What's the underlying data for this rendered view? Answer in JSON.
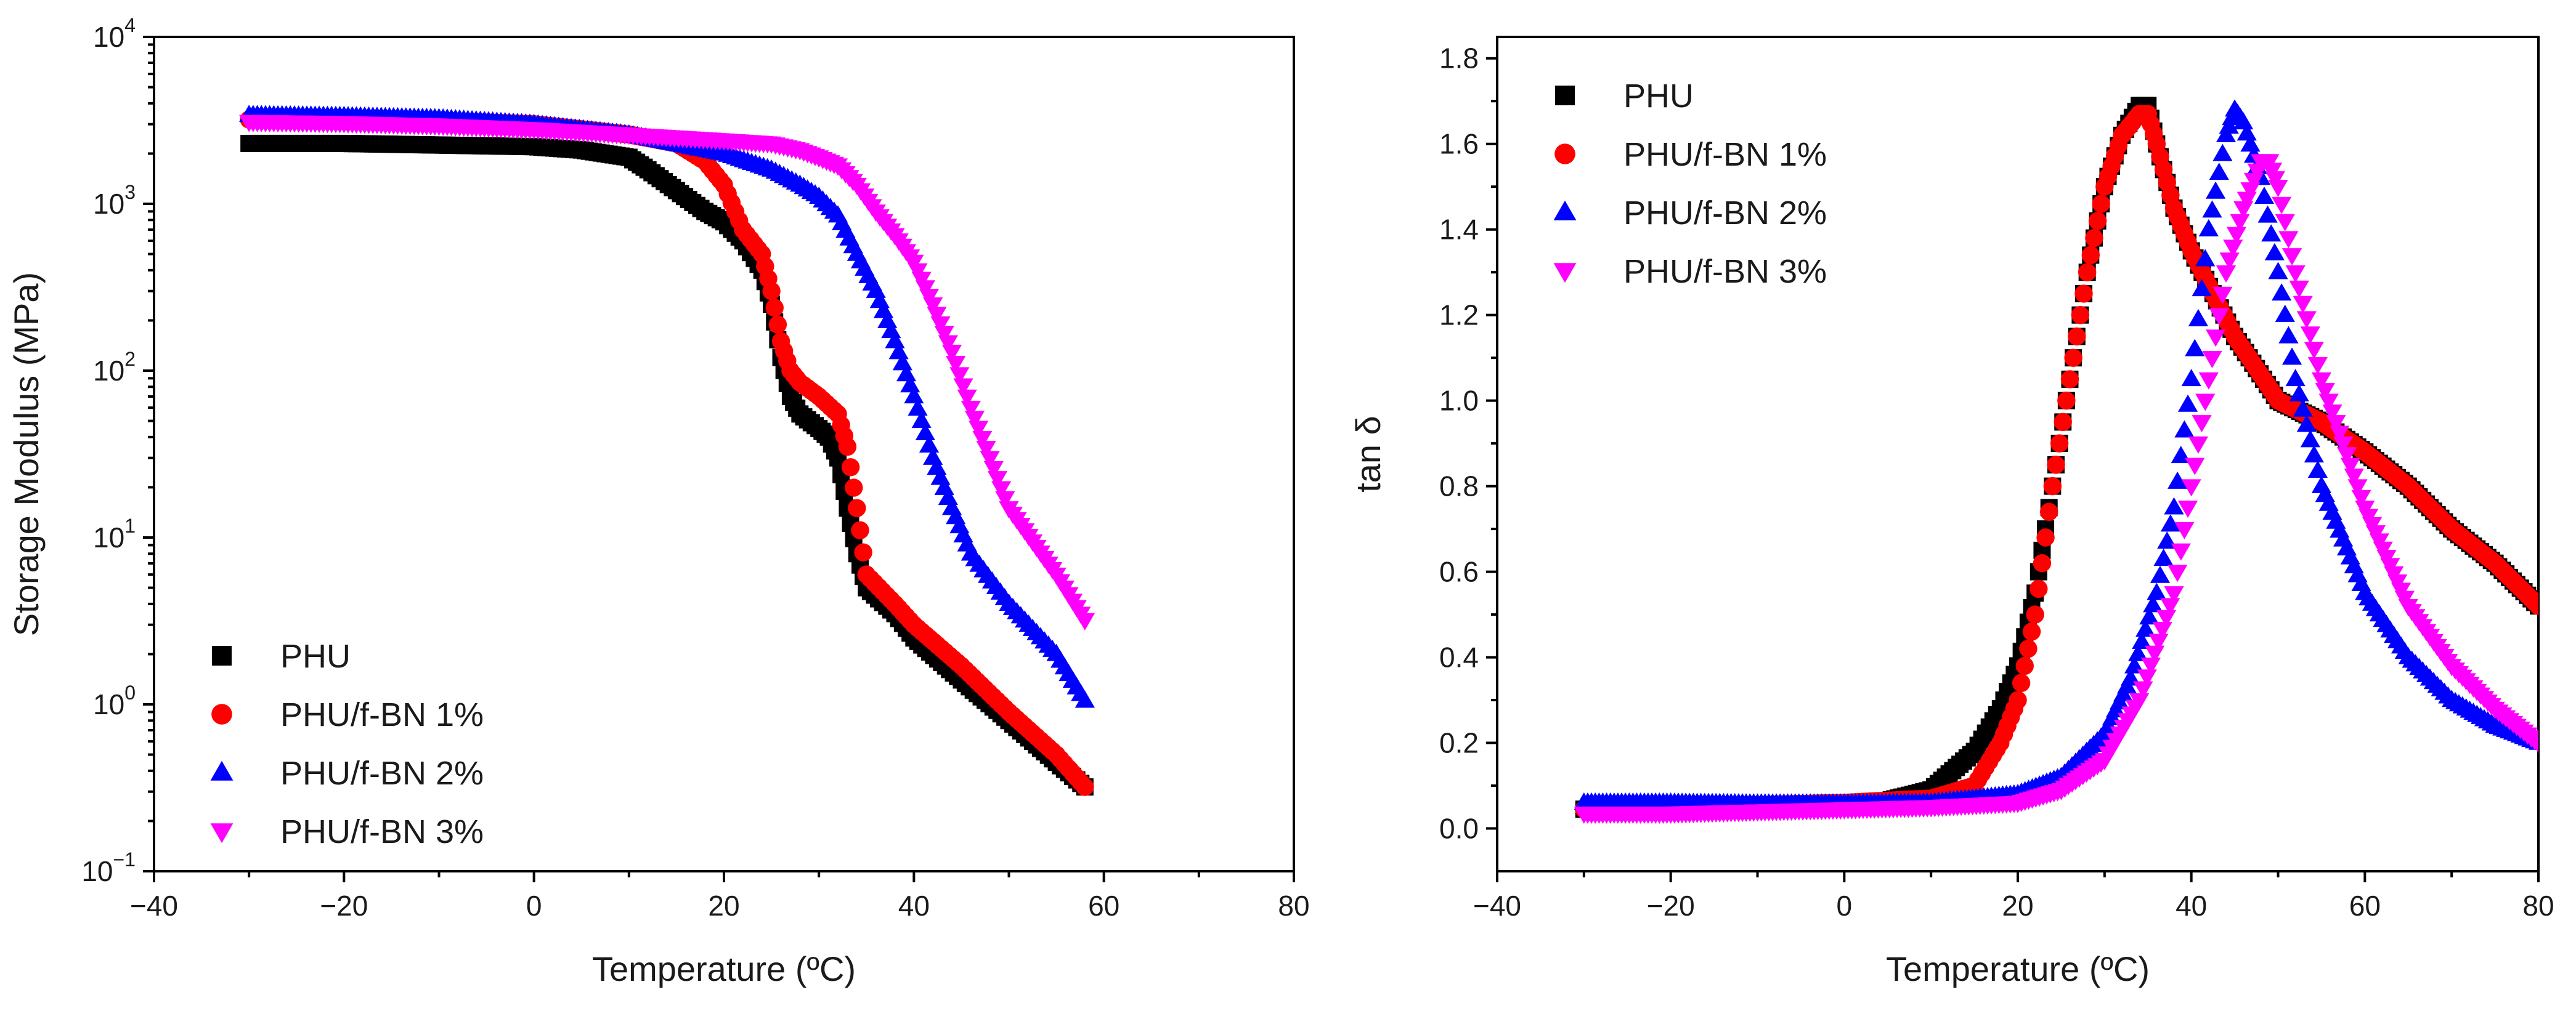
{
  "chart_data": [
    {
      "type": "scatter",
      "yscale": "log",
      "xlabel": "Temperature (ºC)",
      "ylabel": "Storage Modulus (MPa)",
      "xlim": [
        -40,
        80
      ],
      "ylim": [
        0.1,
        10000
      ],
      "xticks": [
        -40,
        -20,
        0,
        20,
        40,
        60,
        80
      ],
      "yticks": [
        {
          "value": 0.1,
          "base": "10",
          "exp": "−1"
        },
        {
          "value": 1,
          "base": "10",
          "exp": "0"
        },
        {
          "value": 10,
          "base": "10",
          "exp": "1"
        },
        {
          "value": 100,
          "base": "10",
          "exp": "2"
        },
        {
          "value": 1000,
          "base": "10",
          "exp": "3"
        },
        {
          "value": 10000,
          "base": "10",
          "exp": "4"
        }
      ],
      "legend_position": "bottom-left",
      "series": [
        {
          "name": "PHU",
          "color": "#000000",
          "marker": "square",
          "x": [
            -30,
            -20,
            -10,
            0,
            5,
            10,
            12,
            15,
            18,
            20,
            22,
            24,
            25,
            26,
            27,
            28,
            30,
            31,
            32,
            33,
            34,
            35,
            38,
            40,
            45,
            50,
            55,
            58
          ],
          "y": [
            2300,
            2300,
            2250,
            2200,
            2100,
            1900,
            1600,
            1200,
            900,
            780,
            600,
            400,
            250,
            120,
            70,
            55,
            45,
            40,
            30,
            15,
            8,
            5,
            3.5,
            2.5,
            1.4,
            0.8,
            0.45,
            0.32
          ]
        },
        {
          "name": "PHU/f-BN 1%",
          "color": "#ff0000",
          "marker": "circle",
          "x": [
            -30,
            -20,
            -10,
            0,
            5,
            10,
            15,
            18,
            20,
            22,
            24,
            25,
            26,
            27,
            28,
            30,
            32,
            33,
            34,
            35,
            38,
            40,
            45,
            50,
            55,
            58
          ],
          "y": [
            3200,
            3200,
            3150,
            3000,
            2800,
            2600,
            2300,
            1800,
            1300,
            700,
            500,
            300,
            150,
            100,
            85,
            70,
            55,
            35,
            15,
            6,
            4,
            3,
            1.7,
            0.9,
            0.5,
            0.32
          ]
        },
        {
          "name": "PHU/f-BN 2%",
          "color": "#0000ff",
          "marker": "triangle-up",
          "x": [
            -30,
            -20,
            -10,
            0,
            10,
            20,
            25,
            28,
            30,
            32,
            34,
            36,
            38,
            40,
            42,
            44,
            46,
            50,
            55,
            58
          ],
          "y": [
            3400,
            3350,
            3250,
            3000,
            2600,
            2000,
            1600,
            1300,
            1100,
            850,
            500,
            300,
            150,
            70,
            30,
            15,
            8,
            4,
            2,
            1.05
          ]
        },
        {
          "name": "PHU/f-BN 3%",
          "color": "#ff00ff",
          "marker": "triangle-down",
          "x": [
            -30,
            -20,
            -10,
            0,
            10,
            20,
            25,
            28,
            30,
            32,
            34,
            36,
            38,
            40,
            42,
            44,
            46,
            48,
            50,
            55,
            58
          ],
          "y": [
            3100,
            3050,
            2950,
            2800,
            2600,
            2400,
            2300,
            2100,
            1900,
            1700,
            1300,
            900,
            650,
            450,
            250,
            130,
            60,
            30,
            15,
            6,
            3.2
          ]
        }
      ]
    },
    {
      "type": "scatter",
      "xlabel": "Temperature (ºC)",
      "ylabel": "tan δ",
      "xlim": [
        -40,
        80
      ],
      "ylim": [
        -0.1,
        1.85
      ],
      "xticks": [
        -40,
        -20,
        0,
        20,
        40,
        60,
        80
      ],
      "yticks": [
        0.0,
        0.2,
        0.4,
        0.6,
        0.8,
        1.0,
        1.2,
        1.4,
        1.6,
        1.8
      ],
      "legend_position": "top-left",
      "series": [
        {
          "name": "PHU",
          "color": "#000000",
          "marker": "square",
          "x": [
            -30,
            -20,
            -10,
            0,
            5,
            10,
            15,
            18,
            20,
            22,
            24,
            26,
            28,
            30,
            32,
            34,
            35,
            36,
            38,
            40,
            45,
            50,
            55,
            60,
            65,
            70,
            75,
            80
          ],
          "y": [
            0.045,
            0.05,
            0.055,
            0.06,
            0.065,
            0.09,
            0.18,
            0.28,
            0.38,
            0.55,
            0.8,
            1.05,
            1.3,
            1.5,
            1.62,
            1.69,
            1.69,
            1.6,
            1.45,
            1.35,
            1.15,
            1.0,
            0.95,
            0.88,
            0.8,
            0.7,
            0.62,
            0.52
          ]
        },
        {
          "name": "PHU/f-BN 1%",
          "color": "#ff0000",
          "marker": "circle",
          "x": [
            -30,
            -20,
            -10,
            0,
            10,
            15,
            18,
            20,
            22,
            24,
            26,
            28,
            30,
            32,
            34,
            35,
            36,
            38,
            40,
            45,
            50,
            55,
            60,
            65,
            70,
            75,
            80
          ],
          "y": [
            0.045,
            0.05,
            0.055,
            0.06,
            0.07,
            0.1,
            0.2,
            0.3,
            0.5,
            0.8,
            1.05,
            1.3,
            1.5,
            1.62,
            1.67,
            1.67,
            1.6,
            1.45,
            1.35,
            1.15,
            1.0,
            0.95,
            0.88,
            0.8,
            0.7,
            0.62,
            0.52
          ]
        },
        {
          "name": "PHU/f-BN 2%",
          "color": "#0000ff",
          "marker": "triangle-up",
          "x": [
            -30,
            -20,
            -10,
            0,
            10,
            20,
            25,
            30,
            33,
            36,
            38,
            40,
            42,
            44,
            45,
            46,
            48,
            50,
            52,
            55,
            60,
            65,
            70,
            75,
            80
          ],
          "y": [
            0.06,
            0.06,
            0.058,
            0.058,
            0.06,
            0.08,
            0.12,
            0.22,
            0.35,
            0.55,
            0.75,
            1.05,
            1.4,
            1.62,
            1.68,
            1.65,
            1.52,
            1.3,
            1.05,
            0.8,
            0.55,
            0.4,
            0.3,
            0.24,
            0.2
          ]
        },
        {
          "name": "PHU/f-BN 3%",
          "color": "#ff00ff",
          "marker": "triangle-down",
          "x": [
            -30,
            -20,
            -10,
            0,
            10,
            20,
            25,
            30,
            34,
            38,
            40,
            42,
            44,
            46,
            48,
            49,
            50,
            52,
            55,
            60,
            65,
            70,
            75,
            80
          ],
          "y": [
            0.035,
            0.035,
            0.04,
            0.045,
            0.05,
            0.06,
            0.09,
            0.16,
            0.3,
            0.55,
            0.8,
            1.05,
            1.3,
            1.45,
            1.56,
            1.56,
            1.5,
            1.3,
            1.05,
            0.75,
            0.52,
            0.38,
            0.28,
            0.2
          ]
        }
      ]
    }
  ]
}
